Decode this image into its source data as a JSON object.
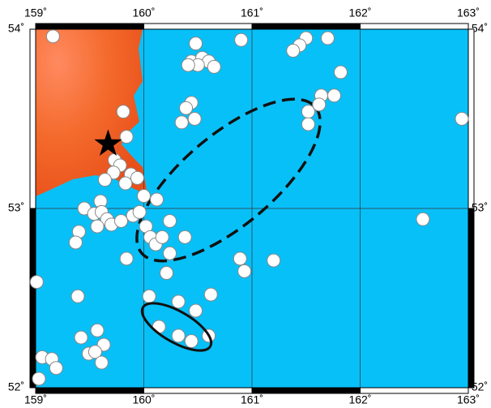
{
  "map": {
    "lon_range": [
      159,
      163
    ],
    "lat_range": [
      52,
      54
    ],
    "lon_ticks": [
      {
        "value": 159,
        "label": "159˚"
      },
      {
        "value": 160,
        "label": "160˚"
      },
      {
        "value": 161,
        "label": "161˚"
      },
      {
        "value": 162,
        "label": "162˚"
      },
      {
        "value": 163,
        "label": "163˚"
      }
    ],
    "lat_ticks": [
      {
        "value": 54,
        "label": "54˚"
      },
      {
        "value": 53,
        "label": "53˚"
      },
      {
        "value": 52,
        "label": "52˚"
      }
    ],
    "epicenter": [
      159.67,
      53.36
    ],
    "events": [
      [
        159.16,
        53.96
      ],
      [
        160.48,
        53.92
      ],
      [
        160.9,
        53.94
      ],
      [
        161.5,
        53.95
      ],
      [
        161.44,
        53.91
      ],
      [
        161.38,
        53.88
      ],
      [
        161.7,
        53.95
      ],
      [
        160.44,
        53.82
      ],
      [
        160.54,
        53.84
      ],
      [
        160.6,
        53.82
      ],
      [
        160.65,
        53.79
      ],
      [
        160.5,
        53.8
      ],
      [
        160.41,
        53.8
      ],
      [
        161.82,
        53.76
      ],
      [
        161.64,
        53.63
      ],
      [
        161.76,
        53.63
      ],
      [
        161.62,
        53.58
      ],
      [
        161.52,
        53.54
      ],
      [
        161.52,
        53.47
      ],
      [
        160.44,
        53.59
      ],
      [
        160.39,
        53.56
      ],
      [
        160.35,
        53.48
      ],
      [
        160.47,
        53.5
      ],
      [
        159.81,
        53.54
      ],
      [
        159.84,
        53.4
      ],
      [
        159.73,
        53.27
      ],
      [
        159.78,
        53.24
      ],
      [
        159.72,
        53.2
      ],
      [
        159.88,
        53.19
      ],
      [
        159.94,
        53.17
      ],
      [
        159.83,
        53.14
      ],
      [
        160.12,
        53.05
      ],
      [
        159.6,
        53.04
      ],
      [
        159.45,
        53.0
      ],
      [
        159.54,
        52.97
      ],
      [
        159.61,
        52.98
      ],
      [
        159.66,
        52.94
      ],
      [
        159.7,
        52.91
      ],
      [
        159.57,
        52.9
      ],
      [
        159.4,
        52.87
      ],
      [
        159.37,
        52.81
      ],
      [
        159.79,
        52.93
      ],
      [
        159.9,
        52.96
      ],
      [
        159.96,
        52.98
      ],
      [
        160.02,
        52.9
      ],
      [
        160.06,
        52.84
      ],
      [
        160.11,
        52.8
      ],
      [
        160.17,
        52.84
      ],
      [
        160.24,
        52.93
      ],
      [
        160.38,
        52.84
      ],
      [
        159.84,
        52.72
      ],
      [
        160.21,
        52.64
      ],
      [
        160.89,
        52.72
      ],
      [
        161.2,
        52.71
      ],
      [
        160.93,
        52.65
      ],
      [
        160.05,
        52.51
      ],
      [
        160.62,
        52.52
      ],
      [
        159.01,
        52.59
      ],
      [
        159.39,
        52.51
      ],
      [
        160.32,
        52.48
      ],
      [
        160.48,
        52.43
      ],
      [
        160.14,
        52.34
      ],
      [
        160.32,
        52.29
      ],
      [
        160.44,
        52.26
      ],
      [
        160.6,
        52.29
      ],
      [
        159.57,
        52.32
      ],
      [
        159.42,
        52.28
      ],
      [
        159.63,
        52.24
      ],
      [
        159.49,
        52.19
      ],
      [
        159.55,
        52.2
      ],
      [
        159.06,
        52.17
      ],
      [
        159.15,
        52.16
      ],
      [
        159.19,
        52.11
      ],
      [
        159.61,
        52.14
      ],
      [
        159.03,
        52.05
      ],
      [
        162.58,
        52.94
      ],
      [
        162.94,
        53.5
      ],
      [
        159.64,
        53.16
      ],
      [
        160.0,
        53.07
      ],
      [
        160.24,
        52.75
      ]
    ]
  }
}
